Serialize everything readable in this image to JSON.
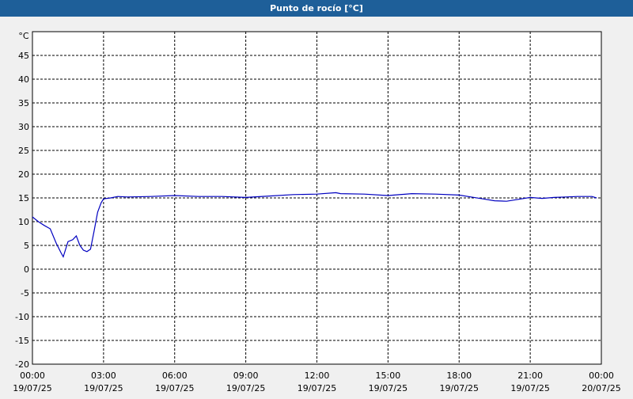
{
  "chart_data": {
    "type": "line",
    "title": "Punto de rocío [°C]",
    "y_unit": "°C",
    "xlim": [
      0,
      24
    ],
    "xticks": [
      {
        "value": 0,
        "label": "00:00"
      },
      {
        "value": 3,
        "label": "03:00"
      },
      {
        "value": 6,
        "label": "06:00"
      },
      {
        "value": 9,
        "label": "09:00"
      },
      {
        "value": 12,
        "label": "12:00"
      },
      {
        "value": 15,
        "label": "15:00"
      },
      {
        "value": 18,
        "label": "18:00"
      },
      {
        "value": 21,
        "label": "21:00"
      },
      {
        "value": 24,
        "label": "00:00"
      }
    ],
    "xtick_dates": [
      "19/07/25",
      "19/07/25",
      "19/07/25",
      "19/07/25",
      "19/07/25",
      "19/07/25",
      "19/07/25",
      "19/07/25",
      "20/07/25"
    ],
    "ylim": [
      -20,
      50
    ],
    "yticks": [
      -20,
      -15,
      -10,
      -5,
      0,
      5,
      10,
      15,
      20,
      25,
      30,
      35,
      40,
      45
    ],
    "grid": true,
    "series": [
      {
        "color": "#0000c0",
        "x": [
          0,
          0.25,
          0.5,
          0.75,
          1.0,
          1.2,
          1.3,
          1.5,
          1.7,
          1.85,
          2.0,
          2.15,
          2.3,
          2.45,
          2.6,
          2.75,
          2.9,
          3.0,
          3.3,
          3.6,
          4,
          5,
          6,
          7,
          8,
          9,
          10,
          11,
          12,
          12.8,
          13,
          14,
          15,
          16,
          17,
          18,
          18.5,
          19,
          19.5,
          20,
          20.5,
          21,
          21.5,
          22,
          22.5,
          23,
          23.6,
          23.8
        ],
        "values": [
          11,
          10,
          9.2,
          8.5,
          5.5,
          3.5,
          2.6,
          5.8,
          6.2,
          7,
          5,
          4,
          3.7,
          4.2,
          8,
          12,
          14,
          14.8,
          15,
          15.3,
          15.2,
          15.3,
          15.5,
          15.3,
          15.3,
          15.1,
          15.4,
          15.7,
          15.8,
          16.1,
          15.9,
          15.8,
          15.5,
          15.9,
          15.8,
          15.6,
          15.2,
          14.8,
          14.4,
          14.3,
          14.7,
          15.1,
          14.9,
          15.1,
          15.2,
          15.3,
          15.3,
          15.0
        ]
      }
    ]
  }
}
